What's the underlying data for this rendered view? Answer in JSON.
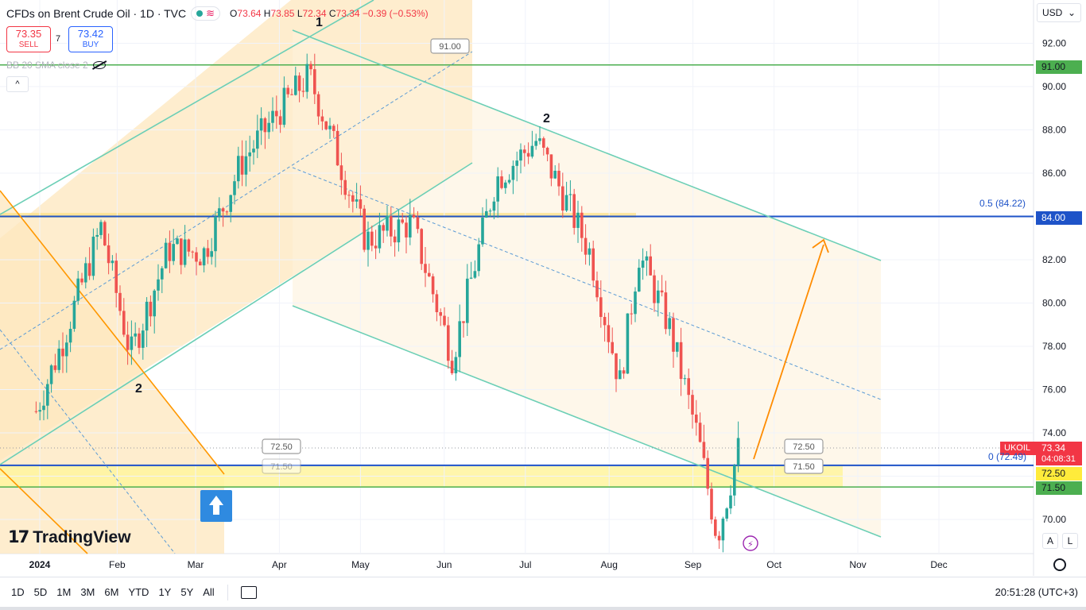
{
  "header": {
    "symbol_title": "CFDs on Brent Crude Oil · 1D · TVC",
    "ohlc": {
      "o_label": "O",
      "o": "73.64",
      "h_label": "H",
      "h": "73.85",
      "l_label": "L",
      "l": "72.34",
      "c_label": "C",
      "c": "73.34",
      "chg": "−0.39 (−0.53%)"
    }
  },
  "trade": {
    "sell_price": "73.35",
    "sell_label": "SELL",
    "spread": "7",
    "buy_price": "73.42",
    "buy_label": "BUY"
  },
  "indicator": {
    "label": "BB 20 SMA close 2"
  },
  "collapse_label": "^",
  "logo": {
    "text": "TradingView"
  },
  "currency": "USD",
  "symbol_tag": "UKOIL",
  "price_tags": {
    "last": "73.34",
    "countdown": "04:08:31",
    "h91": "91.00",
    "h84": "84.00",
    "h7250": "72.50",
    "h7150": "71.50"
  },
  "fib_labels": {
    "top": "0.5 (84.22)",
    "bottom": "0 (72.49)"
  },
  "scale_buttons": {
    "a": "A",
    "l": "L"
  },
  "timeframes": [
    "1D",
    "5D",
    "1M",
    "3M",
    "6M",
    "YTD",
    "1Y",
    "5Y",
    "All"
  ],
  "clock": "20:51:28 (UTC+3)",
  "colors": {
    "up": "#26a69a",
    "down": "#ef5350",
    "channel": "#6ccfb6",
    "orange": "#ff9800",
    "blue_line": "#1e53c8",
    "green_line": "#4caf50"
  },
  "chart_data": {
    "type": "candlestick",
    "y_axis": {
      "ticks": [
        70.0,
        72.0,
        74.0,
        76.0,
        78.0,
        80.0,
        82.0,
        84.0,
        86.0,
        88.0,
        90.0,
        92.0
      ],
      "labels": [
        "70.00",
        "72.00",
        "74.00",
        "76.00",
        "78.00",
        "80.00",
        "82.00",
        "84.00",
        "86.00",
        "88.00",
        "90.00",
        "92.00"
      ],
      "ylim": [
        68.5,
        94.0
      ]
    },
    "x_axis": {
      "labels": [
        "2024",
        "Feb",
        "Mar",
        "Apr",
        "May",
        "Jun",
        "Jul",
        "Aug",
        "Sep",
        "Oct",
        "Nov",
        "Dec"
      ]
    },
    "horizontal_levels": [
      {
        "value": 91.0,
        "label": "91.00",
        "color": "green"
      },
      {
        "value": 84.0,
        "label": "84.00",
        "color": "blue"
      },
      {
        "value": 72.5,
        "label": "72.50",
        "color": "blue"
      },
      {
        "value": 71.5,
        "label": "71.50",
        "color": "green"
      }
    ],
    "wave_labels": [
      "1",
      "2",
      "2"
    ],
    "callouts": [
      "91.00",
      "72.50",
      "71.50",
      "72.50",
      "71.50"
    ],
    "approx_close_path": [
      {
        "date": "2024-01-02",
        "close": 75.0
      },
      {
        "date": "2024-01-12",
        "close": 78.3
      },
      {
        "date": "2024-01-26",
        "close": 83.5
      },
      {
        "date": "2024-02-06",
        "close": 77.6
      },
      {
        "date": "2024-02-20",
        "close": 82.5
      },
      {
        "date": "2024-03-04",
        "close": 82.3
      },
      {
        "date": "2024-03-18",
        "close": 86.5
      },
      {
        "date": "2024-04-01",
        "close": 88.9
      },
      {
        "date": "2024-04-12",
        "close": 90.5
      },
      {
        "date": "2024-04-22",
        "close": 87.0
      },
      {
        "date": "2024-05-03",
        "close": 82.9
      },
      {
        "date": "2024-05-20",
        "close": 83.7
      },
      {
        "date": "2024-06-04",
        "close": 77.5
      },
      {
        "date": "2024-06-20",
        "close": 85.7
      },
      {
        "date": "2024-07-05",
        "close": 87.5
      },
      {
        "date": "2024-07-15",
        "close": 85.0
      },
      {
        "date": "2024-07-25",
        "close": 82.3
      },
      {
        "date": "2024-08-05",
        "close": 76.3
      },
      {
        "date": "2024-08-12",
        "close": 82.3
      },
      {
        "date": "2024-08-23",
        "close": 79.0
      },
      {
        "date": "2024-09-03",
        "close": 73.7
      },
      {
        "date": "2024-09-10",
        "close": 69.2
      },
      {
        "date": "2024-09-18",
        "close": 73.34
      }
    ]
  }
}
